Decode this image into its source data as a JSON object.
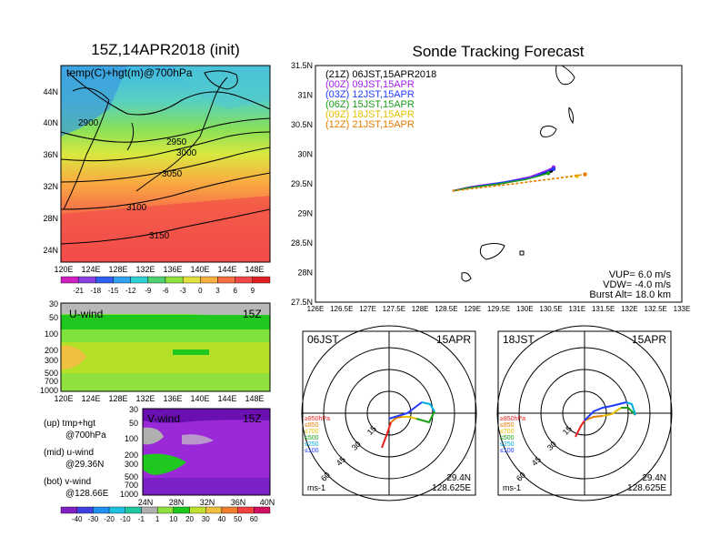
{
  "map_panel": {
    "title": "15Z,14APR2018 (init)",
    "label": "temp(C)+hgt(m)@700hPa",
    "lat_ticks": [
      "44N",
      "40N",
      "36N",
      "32N",
      "28N",
      "24N"
    ],
    "lon_ticks": [
      "120E",
      "124E",
      "128E",
      "132E",
      "136E",
      "140E",
      "144E",
      "148E"
    ],
    "contours": [
      "2900",
      "2950",
      "3000",
      "3050",
      "3100",
      "3150"
    ],
    "temp_colorbar": [
      "-21",
      "-18",
      "-15",
      "-12",
      "-9",
      "-6",
      "-3",
      "0",
      "3",
      "6",
      "9"
    ]
  },
  "uwind_panel": {
    "label": "U-wind",
    "time": "15Z",
    "pressure_ticks": [
      "30",
      "50",
      "100",
      "200",
      "300",
      "500",
      "700",
      "1000"
    ],
    "lon_ticks": [
      "120E",
      "124E",
      "128E",
      "132E",
      "136E",
      "140E",
      "144E",
      "148E"
    ]
  },
  "vwind_panel": {
    "label": "V-wind",
    "time": "15Z",
    "pressure_ticks": [
      "30",
      "50",
      "100",
      "200",
      "300",
      "500",
      "700",
      "1000"
    ],
    "lat_ticks": [
      "24N",
      "28N",
      "32N",
      "36N",
      "40N"
    ]
  },
  "wind_colorbar": [
    "-40",
    "-30",
    "-20",
    "-10",
    "-1",
    "1",
    "10",
    "20",
    "30",
    "40",
    "50",
    "60"
  ],
  "legend_notes": [
    {
      "line1": "(up) tmp+hgt",
      "line2": "@700hPa"
    },
    {
      "line1": "(mid) u-wind",
      "line2": "@29.36N"
    },
    {
      "line1": "(bot) v-wind",
      "line2": "@128.66E"
    }
  ],
  "tracking": {
    "title": "Sonde Tracking Forecast",
    "lat_ticks": [
      "31.5N",
      "31N",
      "30.5N",
      "30N",
      "29.5N",
      "29N",
      "28.5N",
      "28N",
      "27.5N"
    ],
    "lon_ticks": [
      "126E",
      "126.5E",
      "127E",
      "127.5E",
      "128E",
      "128.5E",
      "129E",
      "129.5E",
      "130E",
      "130.5E",
      "131E",
      "131.5E",
      "132E",
      "132.5E",
      "133E"
    ],
    "legend": [
      {
        "text": "(21Z) 06JST,15APR2018",
        "color": "#000000"
      },
      {
        "text": "(00Z) 09JST,15APR",
        "color": "#a020f0"
      },
      {
        "text": "(03Z) 12JST,15APR",
        "color": "#1f3cff"
      },
      {
        "text": "(06Z) 15JST,15APR",
        "color": "#1aa01a"
      },
      {
        "text": "(09Z) 18JST,15APR",
        "color": "#e8c000"
      },
      {
        "text": "(12Z) 21JST,15APR",
        "color": "#e87a00"
      }
    ],
    "params": [
      "VUP= 6.0 m/s",
      "VDW= -4.0 m/s",
      "Burst Alt= 18.0 km"
    ]
  },
  "chart_data": [
    {
      "type": "line",
      "title": "Sonde Tracking Forecast",
      "xlim": [
        126,
        133
      ],
      "ylim": [
        27.5,
        31.5
      ],
      "series": [
        {
          "name": "(21Z) 06JST,15APR2018",
          "x": [
            128.62,
            129.0,
            129.5,
            130.0,
            130.35,
            130.5
          ],
          "y": [
            29.38,
            29.45,
            29.5,
            29.58,
            29.68,
            29.72
          ]
        },
        {
          "name": "(00Z) 09JST,15APR",
          "x": [
            128.62,
            129.1,
            129.6,
            130.1,
            130.4,
            130.55
          ],
          "y": [
            29.38,
            29.47,
            29.53,
            29.62,
            29.72,
            29.78
          ]
        },
        {
          "name": "(03Z) 12JST,15APR",
          "x": [
            128.62,
            129.1,
            129.6,
            130.1,
            130.4,
            130.55
          ],
          "y": [
            29.38,
            29.46,
            29.53,
            29.6,
            29.7,
            29.75
          ]
        },
        {
          "name": "(06Z) 15JST,15APR",
          "x": [
            128.62,
            129.0,
            129.5,
            130.0,
            130.3,
            130.45
          ],
          "y": [
            29.38,
            29.44,
            29.5,
            29.57,
            29.64,
            29.68
          ]
        },
        {
          "name": "(09Z) 18JST,15APR",
          "x": [
            128.62,
            129.0,
            129.6,
            130.2,
            130.7,
            131.0
          ],
          "y": [
            29.38,
            29.42,
            29.48,
            29.55,
            29.6,
            29.63
          ]
        },
        {
          "name": "(12Z) 21JST,15APR",
          "x": [
            128.62,
            129.2,
            129.8,
            130.4,
            130.8,
            131.15
          ],
          "y": [
            29.38,
            29.44,
            29.5,
            29.57,
            29.62,
            29.66
          ]
        }
      ]
    }
  ],
  "hodographs": [
    {
      "time": "06JST",
      "date": "15APR",
      "lat": "29.4N",
      "lon": "128.625E",
      "unit": "ms-1",
      "ring_labels": [
        "15",
        "30",
        "45",
        "60"
      ],
      "levels": [
        {
          "label": "≥850hPa",
          "color": "#e82020"
        },
        {
          "label": "≤850",
          "color": "#e87a00"
        },
        {
          "label": "≤700",
          "color": "#e8c000"
        },
        {
          "label": "≤500",
          "color": "#1aa01a"
        },
        {
          "label": "≤250",
          "color": "#00b0e0"
        },
        {
          "label": "≤100",
          "color": "#1f3cff"
        }
      ]
    },
    {
      "time": "18JST",
      "date": "15APR",
      "lat": "29.4N",
      "lon": "128.625E",
      "unit": "ms-1",
      "ring_labels": [
        "15",
        "30",
        "45",
        "60"
      ],
      "levels": [
        {
          "label": "≥850hPa",
          "color": "#e82020"
        },
        {
          "label": "≤850",
          "color": "#e87a00"
        },
        {
          "label": "≤700",
          "color": "#e8c000"
        },
        {
          "label": "≤500",
          "color": "#1aa01a"
        },
        {
          "label": "≤250",
          "color": "#00b0e0"
        },
        {
          "label": "≤100",
          "color": "#1f3cff"
        }
      ]
    }
  ]
}
